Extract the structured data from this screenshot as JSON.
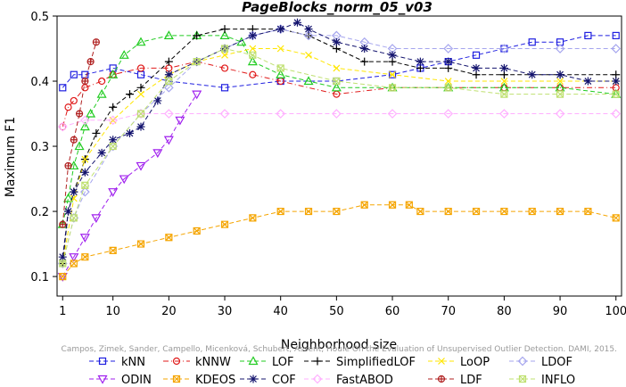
{
  "chart_data": {
    "type": "line",
    "title": "PageBlocks_norm_05_v03",
    "xlabel": "Neighborhood size",
    "ylabel": "Maximum F1",
    "xlim": [
      0,
      101
    ],
    "ylim": [
      0.07,
      0.5
    ],
    "x_ticks": [
      1,
      10,
      20,
      30,
      40,
      50,
      60,
      70,
      80,
      90,
      100
    ],
    "y_ticks": [
      0.1,
      0.2,
      0.3,
      0.4,
      0.5
    ],
    "grid": false,
    "legend_position": "bottom",
    "watermark": "Campos, Zimek, Sander, Campello, Micenková, Schubert, Assent, Houle  On the Evaluation of Unsupervised Outlier Detection. DAMI, 2015.",
    "series": [
      {
        "name": "kNN",
        "color": "#1f1fe0",
        "marker": "square",
        "line": "dashed",
        "x": [
          1,
          3,
          5,
          10,
          15,
          20,
          30,
          40,
          50,
          60,
          65,
          70,
          75,
          80,
          85,
          90,
          95,
          100
        ],
        "y": [
          0.39,
          0.41,
          0.41,
          0.42,
          0.41,
          0.4,
          0.39,
          0.4,
          0.4,
          0.41,
          0.42,
          0.43,
          0.44,
          0.45,
          0.46,
          0.46,
          0.47,
          0.47
        ]
      },
      {
        "name": "kNNW",
        "color": "#e01a1a",
        "marker": "circle",
        "line": "dashdot",
        "x": [
          1,
          2,
          3,
          5,
          8,
          10,
          15,
          20,
          25,
          30,
          35,
          40,
          50,
          60,
          70,
          80,
          90,
          100
        ],
        "y": [
          0.33,
          0.36,
          0.37,
          0.39,
          0.4,
          0.41,
          0.42,
          0.42,
          0.43,
          0.42,
          0.41,
          0.4,
          0.38,
          0.39,
          0.39,
          0.39,
          0.39,
          0.39
        ]
      },
      {
        "name": "LOF",
        "color": "#22cc22",
        "marker": "triangle-up",
        "line": "dashed",
        "x": [
          1,
          2,
          3,
          4,
          5,
          6,
          8,
          10,
          12,
          15,
          20,
          25,
          30,
          33,
          35,
          40,
          45,
          50,
          60,
          70,
          80,
          90,
          100
        ],
        "y": [
          0.18,
          0.22,
          0.27,
          0.3,
          0.33,
          0.35,
          0.38,
          0.41,
          0.44,
          0.46,
          0.47,
          0.47,
          0.47,
          0.46,
          0.43,
          0.41,
          0.4,
          0.39,
          0.39,
          0.39,
          0.39,
          0.39,
          0.38
        ]
      },
      {
        "name": "SimplifiedLOF",
        "color": "#000000",
        "marker": "plus",
        "line": "dashed",
        "x": [
          1,
          2,
          3,
          5,
          7,
          10,
          13,
          15,
          20,
          25,
          30,
          35,
          40,
          45,
          50,
          55,
          60,
          65,
          70,
          75,
          80,
          90,
          100
        ],
        "y": [
          0.12,
          0.2,
          0.23,
          0.28,
          0.32,
          0.36,
          0.38,
          0.39,
          0.43,
          0.47,
          0.48,
          0.48,
          0.48,
          0.47,
          0.45,
          0.43,
          0.43,
          0.42,
          0.42,
          0.41,
          0.41,
          0.41,
          0.41
        ]
      },
      {
        "name": "LoOP",
        "color": "#ffe600",
        "marker": "cross",
        "line": "dashed",
        "x": [
          1,
          3,
          5,
          10,
          15,
          20,
          25,
          30,
          35,
          40,
          45,
          50,
          60,
          70,
          80,
          90,
          100
        ],
        "y": [
          0.12,
          0.22,
          0.28,
          0.34,
          0.38,
          0.41,
          0.43,
          0.44,
          0.45,
          0.45,
          0.44,
          0.42,
          0.41,
          0.4,
          0.4,
          0.4,
          0.4
        ]
      },
      {
        "name": "LDOF",
        "color": "#a5a5ee",
        "marker": "diamond",
        "line": "dashed",
        "x": [
          1,
          3,
          5,
          10,
          15,
          20,
          25,
          30,
          35,
          40,
          45,
          50,
          55,
          60,
          70,
          80,
          90,
          100
        ],
        "y": [
          0.12,
          0.19,
          0.23,
          0.3,
          0.35,
          0.39,
          0.43,
          0.45,
          0.47,
          0.48,
          0.47,
          0.47,
          0.46,
          0.45,
          0.45,
          0.45,
          0.45,
          0.45
        ]
      },
      {
        "name": "ODIN",
        "color": "#a020ee",
        "marker": "triangle-down",
        "line": "dashed",
        "x": [
          1,
          3,
          5,
          7,
          10,
          12,
          15,
          18,
          20,
          22,
          25
        ],
        "y": [
          0.1,
          0.13,
          0.16,
          0.19,
          0.23,
          0.25,
          0.27,
          0.29,
          0.31,
          0.34,
          0.38
        ]
      },
      {
        "name": "KDEOS",
        "color": "#f5a500",
        "marker": "square-x",
        "line": "dashed",
        "x": [
          1,
          3,
          5,
          10,
          15,
          20,
          25,
          30,
          35,
          40,
          45,
          50,
          55,
          60,
          63,
          65,
          70,
          75,
          80,
          85,
          90,
          95,
          100
        ],
        "y": [
          0.1,
          0.12,
          0.13,
          0.14,
          0.15,
          0.16,
          0.17,
          0.18,
          0.19,
          0.2,
          0.2,
          0.2,
          0.21,
          0.21,
          0.21,
          0.2,
          0.2,
          0.2,
          0.2,
          0.2,
          0.2,
          0.2,
          0.19
        ]
      },
      {
        "name": "COF",
        "color": "#14146e",
        "marker": "asterisk",
        "line": "dashed",
        "x": [
          1,
          2,
          3,
          5,
          8,
          10,
          13,
          15,
          18,
          20,
          25,
          30,
          35,
          40,
          43,
          45,
          50,
          55,
          60,
          65,
          70,
          75,
          80,
          85,
          90,
          95,
          100
        ],
        "y": [
          0.13,
          0.2,
          0.23,
          0.26,
          0.29,
          0.31,
          0.32,
          0.33,
          0.37,
          0.41,
          0.43,
          0.45,
          0.47,
          0.48,
          0.49,
          0.48,
          0.46,
          0.45,
          0.44,
          0.43,
          0.43,
          0.42,
          0.42,
          0.41,
          0.41,
          0.4,
          0.4
        ]
      },
      {
        "name": "FastABOD",
        "color": "#ffb0ff",
        "marker": "diamond",
        "line": "dashed",
        "x": [
          1,
          5,
          10,
          15,
          20,
          30,
          40,
          50,
          60,
          70,
          80,
          90,
          100
        ],
        "y": [
          0.33,
          0.34,
          0.34,
          0.35,
          0.35,
          0.35,
          0.35,
          0.35,
          0.35,
          0.35,
          0.35,
          0.35,
          0.35
        ]
      },
      {
        "name": "LDF",
        "color": "#b02020",
        "marker": "circle-plus",
        "line": "dashed",
        "x": [
          1,
          2,
          3,
          4,
          5,
          6,
          7
        ],
        "y": [
          0.18,
          0.27,
          0.31,
          0.35,
          0.4,
          0.43,
          0.46
        ]
      },
      {
        "name": "INFLO",
        "color": "#bfe070",
        "marker": "square-x",
        "line": "dashed",
        "x": [
          1,
          3,
          5,
          10,
          15,
          20,
          25,
          30,
          35,
          40,
          50,
          60,
          70,
          80,
          90,
          100
        ],
        "y": [
          0.12,
          0.19,
          0.24,
          0.3,
          0.35,
          0.4,
          0.43,
          0.45,
          0.44,
          0.42,
          0.4,
          0.39,
          0.39,
          0.38,
          0.38,
          0.38
        ]
      }
    ],
    "legend_order": [
      "kNN",
      "kNNW",
      "LOF",
      "SimplifiedLOF",
      "LoOP",
      "LDOF",
      "ODIN",
      "KDEOS",
      "COF",
      "FastABOD",
      "LDF",
      "INFLO"
    ]
  }
}
